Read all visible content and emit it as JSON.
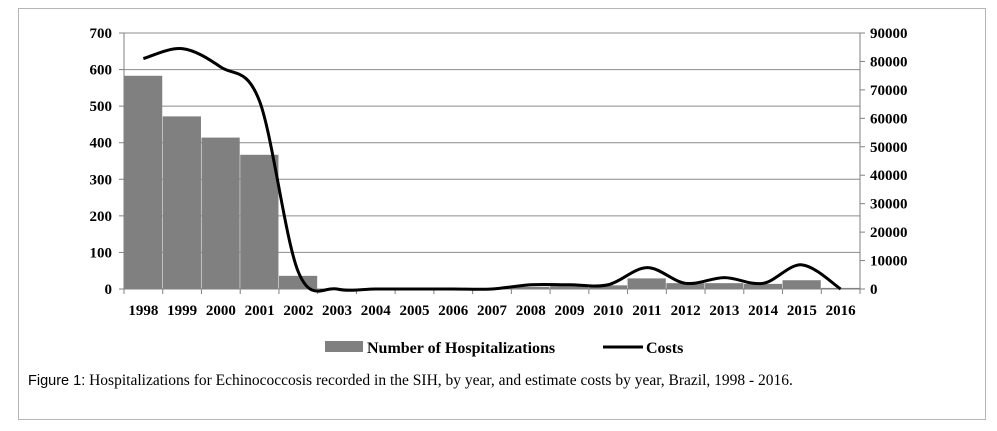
{
  "caption": {
    "label": "Figure 1:",
    "text": "Hospitalizations for Echinococcosis recorded in the SIH, by year, and estimate costs by year, Brazil, 1998 - 2016."
  },
  "chart_data": {
    "type": "bar",
    "categories": [
      "1998",
      "1999",
      "2000",
      "2001",
      "2002",
      "2003",
      "2004",
      "2005",
      "2006",
      "2007",
      "2008",
      "2009",
      "2010",
      "2011",
      "2012",
      "2013",
      "2014",
      "2015",
      "2016"
    ],
    "series": [
      {
        "name": "Number of Hospitalizations",
        "type": "bar",
        "axis": "left",
        "color": "#808080",
        "values": [
          583,
          472,
          414,
          367,
          36,
          0,
          0,
          0,
          0,
          0,
          6,
          8,
          10,
          29,
          16,
          16,
          14,
          24,
          3
        ]
      },
      {
        "name": "Costs",
        "type": "line",
        "axis": "right",
        "color": "#000000",
        "values": [
          81000,
          84500,
          78000,
          66000,
          6000,
          0,
          0,
          0,
          0,
          0,
          1500,
          1500,
          1500,
          7500,
          2000,
          4000,
          2000,
          8500,
          0
        ]
      }
    ],
    "y_left": {
      "lim": [
        0,
        700
      ],
      "ticks": [
        0,
        100,
        200,
        300,
        400,
        500,
        600,
        700
      ]
    },
    "y_right": {
      "lim": [
        0,
        90000
      ],
      "ticks": [
        0,
        10000,
        20000,
        30000,
        40000,
        50000,
        60000,
        70000,
        80000,
        90000
      ]
    },
    "grid": true,
    "legend": "bottom",
    "title": "",
    "xlabel": "",
    "ylabel": ""
  }
}
